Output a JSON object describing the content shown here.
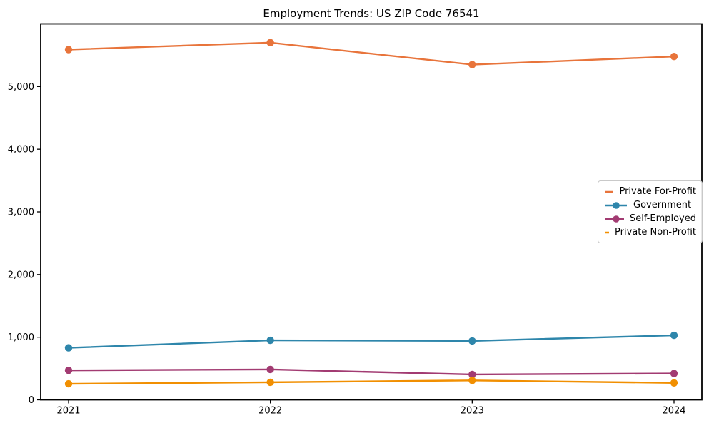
{
  "chart_data": {
    "type": "line",
    "title": "Employment Trends: US ZIP Code 76541",
    "xlabel": "",
    "ylabel": "",
    "x_tick_labels": [
      "2021",
      "2022",
      "2023",
      "2024"
    ],
    "y_ticks": [
      0,
      1000,
      2000,
      3000,
      4000,
      5000
    ],
    "y_tick_labels": [
      "0",
      "1,000",
      "2,000",
      "3,000",
      "4,000",
      "5,000"
    ],
    "ylim": [
      0,
      6000
    ],
    "grid": false,
    "legend_position": "center-right",
    "series": [
      {
        "name": "Private For-Profit",
        "color": "#E8743B",
        "values": [
          5590,
          5700,
          5350,
          5480
        ]
      },
      {
        "name": "Government",
        "color": "#2E86AB",
        "values": [
          830,
          950,
          940,
          1030
        ]
      },
      {
        "name": "Self-Employed",
        "color": "#A23B72",
        "values": [
          470,
          485,
          405,
          420
        ]
      },
      {
        "name": "Private Non-Profit",
        "color": "#F18F01",
        "values": [
          255,
          280,
          310,
          270
        ]
      }
    ]
  },
  "layout_note": "matplotlib-style line chart, no gridlines, black axis frame"
}
